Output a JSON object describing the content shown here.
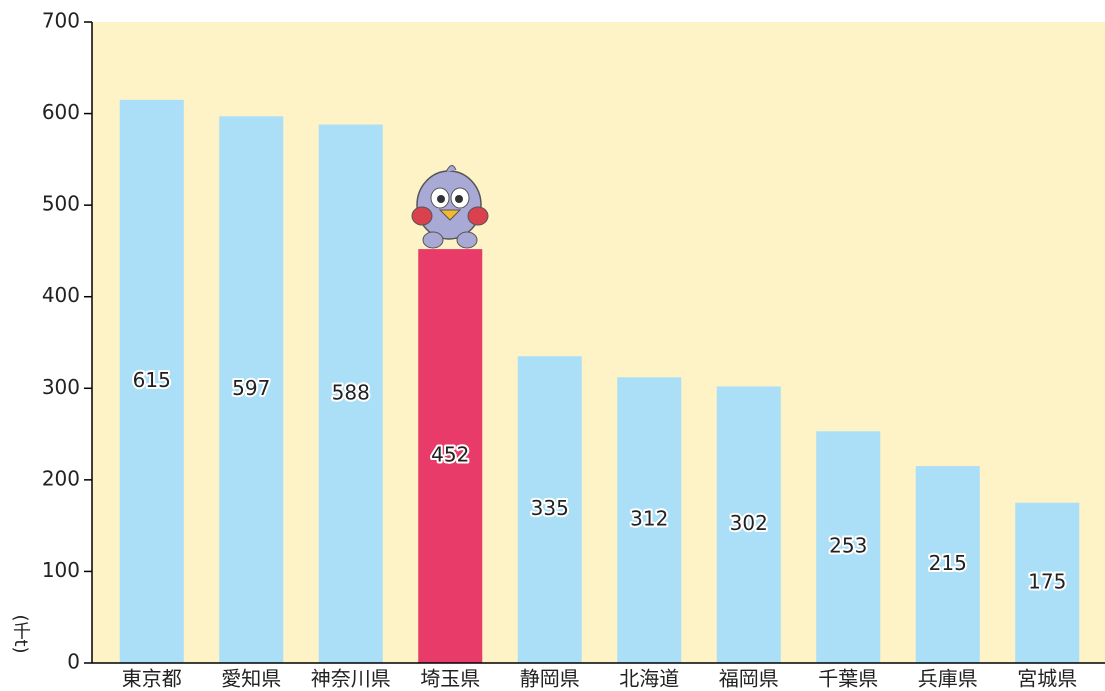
{
  "chart_data": {
    "type": "bar",
    "y_label": "(千t)",
    "categories": [
      "東京都",
      "愛知県",
      "神奈川県",
      "埼玉県",
      "静岡県",
      "北海道",
      "福岡県",
      "千葉県",
      "兵庫県",
      "宮城県"
    ],
    "values": [
      615,
      597,
      588,
      452,
      335,
      312,
      302,
      253,
      215,
      175
    ],
    "colors": [
      "#aadff7",
      "#aadff7",
      "#aadff7",
      "#e93b69",
      "#aadff7",
      "#aadff7",
      "#aadff7",
      "#aadff7",
      "#aadff7",
      "#aadff7"
    ],
    "ylim": [
      0,
      700
    ],
    "yticks": [
      0,
      100,
      200,
      300,
      400,
      500,
      600,
      700
    ]
  }
}
